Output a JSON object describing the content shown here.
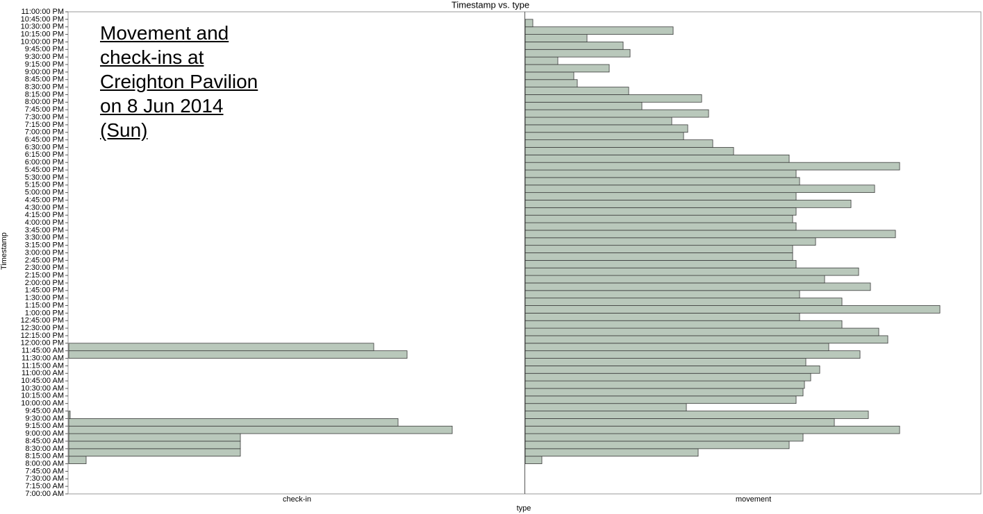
{
  "chart_data": {
    "type": "histogram",
    "title": "Timestamp vs. type",
    "x_label": "type",
    "y_label": "Timestamp",
    "annotation": "Movement and check-ins at Creighton Pavilion on 8 Jun 2014 (Sun)",
    "color": "#b9c8bb",
    "edge_color": "#3a3a3a",
    "ylim": [
      7,
      23
    ],
    "yticks": [
      {
        "value": 7,
        "label": "7:00:00 AM"
      },
      {
        "value": 7.25,
        "label": "7:15:00 AM"
      },
      {
        "value": 7.5,
        "label": "7:30:00 AM"
      },
      {
        "value": 7.75,
        "label": "7:45:00 AM"
      },
      {
        "value": 8,
        "label": "8:00:00 AM"
      },
      {
        "value": 8.25,
        "label": "8:15:00 AM"
      },
      {
        "value": 8.5,
        "label": "8:30:00 AM"
      },
      {
        "value": 8.75,
        "label": "8:45:00 AM"
      },
      {
        "value": 9,
        "label": "9:00:00 AM"
      },
      {
        "value": 9.25,
        "label": "9:15:00 AM"
      },
      {
        "value": 9.5,
        "label": "9:30:00 AM"
      },
      {
        "value": 9.75,
        "label": "9:45:00 AM"
      },
      {
        "value": 10,
        "label": "10:00:00 AM"
      },
      {
        "value": 10.25,
        "label": "10:15:00 AM"
      },
      {
        "value": 10.5,
        "label": "10:30:00 AM"
      },
      {
        "value": 10.75,
        "label": "10:45:00 AM"
      },
      {
        "value": 11,
        "label": "11:00:00 AM"
      },
      {
        "value": 11.25,
        "label": "11:15:00 AM"
      },
      {
        "value": 11.5,
        "label": "11:30:00 AM"
      },
      {
        "value": 11.75,
        "label": "11:45:00 AM"
      },
      {
        "value": 12,
        "label": "12:00:00 PM"
      },
      {
        "value": 12.25,
        "label": "12:15:00 PM"
      },
      {
        "value": 12.5,
        "label": "12:30:00 PM"
      },
      {
        "value": 12.75,
        "label": "12:45:00 PM"
      },
      {
        "value": 13,
        "label": "1:00:00 PM"
      },
      {
        "value": 13.25,
        "label": "1:15:00 PM"
      },
      {
        "value": 13.5,
        "label": "1:30:00 PM"
      },
      {
        "value": 13.75,
        "label": "1:45:00 PM"
      },
      {
        "value": 14,
        "label": "2:00:00 PM"
      },
      {
        "value": 14.25,
        "label": "2:15:00 PM"
      },
      {
        "value": 14.5,
        "label": "2:30:00 PM"
      },
      {
        "value": 14.75,
        "label": "2:45:00 PM"
      },
      {
        "value": 15,
        "label": "3:00:00 PM"
      },
      {
        "value": 15.25,
        "label": "3:15:00 PM"
      },
      {
        "value": 15.5,
        "label": "3:30:00 PM"
      },
      {
        "value": 15.75,
        "label": "3:45:00 PM"
      },
      {
        "value": 16,
        "label": "4:00:00 PM"
      },
      {
        "value": 16.25,
        "label": "4:15:00 PM"
      },
      {
        "value": 16.5,
        "label": "4:30:00 PM"
      },
      {
        "value": 16.75,
        "label": "4:45:00 PM"
      },
      {
        "value": 17,
        "label": "5:00:00 PM"
      },
      {
        "value": 17.25,
        "label": "5:15:00 PM"
      },
      {
        "value": 17.5,
        "label": "5:30:00 PM"
      },
      {
        "value": 17.75,
        "label": "5:45:00 PM"
      },
      {
        "value": 18,
        "label": "6:00:00 PM"
      },
      {
        "value": 18.25,
        "label": "6:15:00 PM"
      },
      {
        "value": 18.5,
        "label": "6:30:00 PM"
      },
      {
        "value": 18.75,
        "label": "6:45:00 PM"
      },
      {
        "value": 19,
        "label": "7:00:00 PM"
      },
      {
        "value": 19.25,
        "label": "7:15:00 PM"
      },
      {
        "value": 19.5,
        "label": "7:30:00 PM"
      },
      {
        "value": 19.75,
        "label": "7:45:00 PM"
      },
      {
        "value": 20,
        "label": "8:00:00 PM"
      },
      {
        "value": 20.25,
        "label": "8:15:00 PM"
      },
      {
        "value": 20.5,
        "label": "8:30:00 PM"
      },
      {
        "value": 20.75,
        "label": "8:45:00 PM"
      },
      {
        "value": 21,
        "label": "9:00:00 PM"
      },
      {
        "value": 21.25,
        "label": "9:15:00 PM"
      },
      {
        "value": 21.5,
        "label": "9:30:00 PM"
      },
      {
        "value": 21.75,
        "label": "9:45:00 PM"
      },
      {
        "value": 22,
        "label": "10:00:00 PM"
      },
      {
        "value": 22.25,
        "label": "10:15:00 PM"
      },
      {
        "value": 22.5,
        "label": "10:30:00 PM"
      },
      {
        "value": 22.75,
        "label": "10:45:00 PM"
      },
      {
        "value": 23,
        "label": "11:00:00 PM"
      }
    ],
    "panels": [
      {
        "category": "check-in",
        "bins": [
          8,
          8.25,
          8.5,
          8.75,
          9,
          9.25,
          9.5,
          9.75,
          10,
          10.25,
          10.5,
          10.75,
          11,
          11.25,
          11.5,
          11.75,
          12
        ],
        "counts": [
          25,
          247,
          247,
          247,
          552,
          474,
          2,
          0,
          0,
          0,
          0,
          0,
          0,
          0,
          487,
          439
        ]
      },
      {
        "category": "movement",
        "bins": [
          8,
          8.25,
          8.5,
          8.75,
          9,
          9.25,
          9.5,
          9.75,
          10,
          10.25,
          10.5,
          10.75,
          11,
          11.25,
          11.5,
          11.75,
          12,
          12.25,
          12.5,
          12.75,
          13,
          13.25,
          13.5,
          13.75,
          14,
          14.25,
          14.5,
          14.75,
          15,
          15.25,
          15.5,
          15.75,
          16,
          16.25,
          16.5,
          16.75,
          17,
          17.25,
          17.5,
          17.75,
          18,
          18.25,
          18.5,
          18.75,
          19,
          19.25,
          19.5,
          19.75,
          20,
          20.25,
          20.5,
          20.75,
          21,
          21.25,
          21.5,
          21.75,
          22,
          22.25,
          22.5,
          22.75
        ],
        "counts": [
          24,
          249,
          380,
          400,
          539,
          445,
          494,
          232,
          390,
          400,
          402,
          411,
          424,
          404,
          482,
          437,
          522,
          509,
          456,
          395,
          597,
          456,
          395,
          497,
          431,
          480,
          390,
          385,
          385,
          418,
          533,
          390,
          385,
          390,
          469,
          390,
          503,
          395,
          390,
          539,
          380,
          300,
          270,
          228,
          234,
          211,
          264,
          168,
          254,
          149,
          75,
          70,
          121,
          47,
          151,
          141,
          89,
          213,
          11
        ]
      }
    ]
  }
}
